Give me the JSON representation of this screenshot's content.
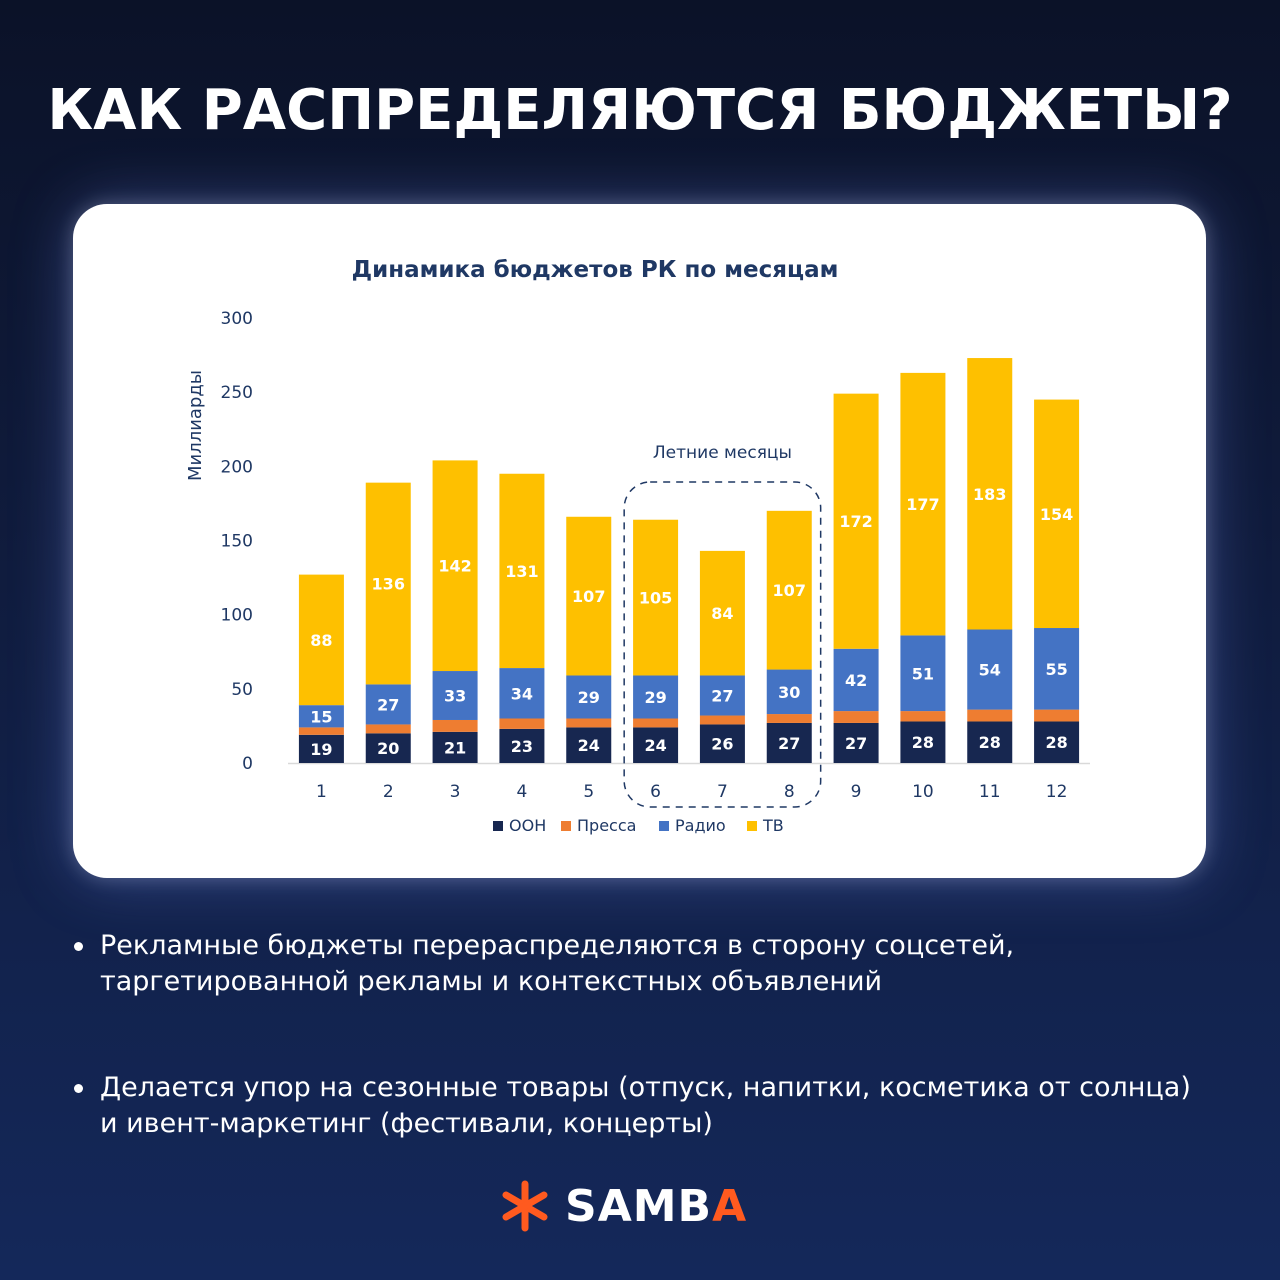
{
  "headline": "КАК РАСПРЕДЕЛЯЮТСЯ БЮДЖЕТЫ?",
  "chart_data": {
    "type": "bar",
    "stacked": true,
    "title": "Динамика бюджетов РК по месяцам",
    "ylabel": "Миллиарды",
    "xlabel": "",
    "ylim": [
      0,
      300
    ],
    "yticks": [
      0,
      50,
      100,
      150,
      200,
      250,
      300
    ],
    "categories": [
      "1",
      "2",
      "3",
      "4",
      "5",
      "6",
      "7",
      "8",
      "9",
      "10",
      "11",
      "12"
    ],
    "series": [
      {
        "name": "ООН",
        "color": "#172750",
        "values": [
          19,
          20,
          21,
          23,
          24,
          24,
          26,
          27,
          27,
          28,
          28,
          28
        ],
        "labeled": true
      },
      {
        "name": "Пресса",
        "color": "#ee7d31",
        "values": [
          5,
          6,
          8,
          7,
          6,
          6,
          6,
          6,
          8,
          7,
          8,
          8
        ],
        "labeled": false
      },
      {
        "name": "Радио",
        "color": "#4473c4",
        "values": [
          15,
          27,
          33,
          34,
          29,
          29,
          27,
          30,
          42,
          51,
          54,
          55
        ],
        "labeled": true
      },
      {
        "name": "ТВ",
        "color": "#fec000",
        "values": [
          88,
          136,
          142,
          131,
          107,
          105,
          84,
          107,
          172,
          177,
          183,
          154
        ],
        "labeled": true
      }
    ],
    "annotation": {
      "text": "Летние месяцы",
      "from_category": "6",
      "to_category": "8"
    },
    "legend_position": "bottom",
    "grid": false
  },
  "bullets": [
    "Рекламные бюджеты перераспределяются в сторону соцсетей,\nтаргетированной рекламы и контекстных объявлений",
    "Делается упор на сезонные товары (отпуск, напитки, косметика от солнца)\nи ивент-маркетинг (фестивали, концерты)"
  ],
  "logo": {
    "main": "SAMB",
    "accent": "A",
    "accent_color": "#ff5a1f"
  }
}
